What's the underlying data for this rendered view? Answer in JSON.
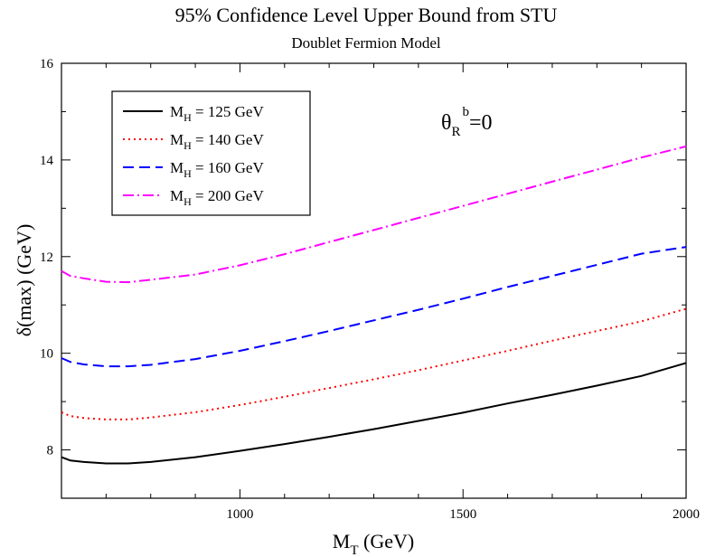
{
  "chart_data": {
    "type": "line",
    "title": "95% Confidence Level Upper Bound from STU",
    "subtitle": "Doublet Fermion Model",
    "xlabel": {
      "main": "M",
      "sub": "T",
      "unit": " (GeV)"
    },
    "ylabel": "δ(max) (GeV)",
    "xlim": [
      600,
      2000
    ],
    "ylim": [
      7,
      16
    ],
    "x_ticks": [
      1000,
      1500,
      2000
    ],
    "y_ticks": [
      8,
      10,
      12,
      14,
      16
    ],
    "grid": false,
    "legend_position": "top-left",
    "annotation": {
      "base": "θ",
      "sub": "R",
      "sup": "b",
      "tail": "=0"
    },
    "x": [
      600,
      620,
      650,
      700,
      750,
      800,
      900,
      1000,
      1100,
      1200,
      1300,
      1400,
      1500,
      1600,
      1700,
      1800,
      1900,
      2000
    ],
    "series": [
      {
        "name": {
          "pre": "M",
          "sub": "H",
          "post": " = 125 GeV"
        },
        "color": "#000000",
        "dash": "",
        "values": [
          7.85,
          7.78,
          7.75,
          7.72,
          7.72,
          7.75,
          7.85,
          7.98,
          8.12,
          8.27,
          8.43,
          8.6,
          8.77,
          8.96,
          9.14,
          9.33,
          9.53,
          9.8
        ]
      },
      {
        "name": {
          "pre": "M",
          "sub": "H",
          "post": " = 140 GeV"
        },
        "color": "#ff0000",
        "dash": "2,4",
        "values": [
          8.78,
          8.7,
          8.66,
          8.63,
          8.63,
          8.67,
          8.78,
          8.93,
          9.1,
          9.28,
          9.46,
          9.65,
          9.85,
          10.05,
          10.26,
          10.46,
          10.66,
          10.92
        ]
      },
      {
        "name": {
          "pre": "M",
          "sub": "H",
          "post": " = 160 GeV"
        },
        "color": "#0000ff",
        "dash": "12,6",
        "values": [
          9.9,
          9.82,
          9.77,
          9.73,
          9.73,
          9.76,
          9.88,
          10.05,
          10.25,
          10.46,
          10.68,
          10.9,
          11.13,
          11.37,
          11.6,
          11.83,
          12.06,
          12.2
        ]
      },
      {
        "name": {
          "pre": "M",
          "sub": "H",
          "post": " = 200 GeV"
        },
        "color": "#ff00ff",
        "dash": "12,4,2,4",
        "values": [
          11.7,
          11.6,
          11.55,
          11.48,
          11.47,
          11.52,
          11.63,
          11.82,
          12.05,
          12.3,
          12.55,
          12.8,
          13.05,
          13.3,
          13.55,
          13.8,
          14.05,
          14.28
        ]
      }
    ]
  }
}
